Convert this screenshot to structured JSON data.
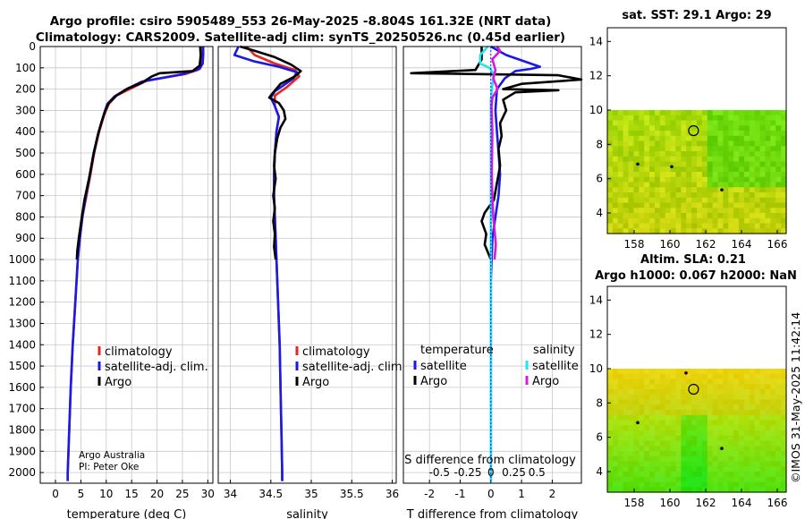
{
  "title": {
    "line1": "Argo profile: csiro 5905489_553 26-May-2025 -8.804S 161.32E (NRT data)",
    "line2": "Climatology: CARS2009. Satellite-adj clim: synTS_20250526.nc (0.45d earlier)"
  },
  "credit": {
    "line1": "Argo Australia",
    "line2": "PI: Peter Oke"
  },
  "timestamp": "©IMOS 31-May-2025 11:42:14",
  "colors": {
    "climatology": "#e8251e",
    "satellite": "#1a1ae6",
    "argo": "#000000",
    "sat_salinity": "#1ee6ee",
    "argo_salinity": "#d81ad8"
  },
  "chart_data": [
    {
      "id": "temperature",
      "type": "line",
      "xlabel": "temperature (deg C)",
      "ylabel": "",
      "xlim": [
        -3,
        31
      ],
      "ylim": [
        2050,
        0
      ],
      "xticks": [
        0,
        5,
        10,
        15,
        20,
        25,
        30
      ],
      "yticks": [
        0,
        100,
        200,
        300,
        400,
        500,
        600,
        700,
        800,
        900,
        1000,
        1100,
        1200,
        1300,
        1400,
        1500,
        1600,
        1700,
        1800,
        1900,
        2000
      ],
      "grid": true,
      "legend": {
        "position": "lower-right",
        "entries": [
          "climatology",
          "satellite-adj. clim.",
          "Argo"
        ]
      },
      "series": [
        {
          "name": "climatology",
          "color": "#e8251e",
          "points": [
            [
              28.9,
              0
            ],
            [
              28.9,
              40
            ],
            [
              28.8,
              80
            ],
            [
              28.0,
              110
            ],
            [
              25.5,
              130
            ],
            [
              18,
              160
            ],
            [
              15,
              195
            ],
            [
              12,
              230
            ],
            [
              10.5,
              270
            ],
            [
              9.6,
              320
            ],
            [
              8.6,
              400
            ],
            [
              7.6,
              500
            ],
            [
              6.9,
              600
            ],
            [
              6.1,
              700
            ],
            [
              5.3,
              800
            ],
            [
              4.8,
              900
            ],
            [
              4.4,
              1000
            ],
            [
              3.9,
              1200
            ],
            [
              3.4,
              1400
            ],
            [
              3.0,
              1600
            ],
            [
              2.7,
              1800
            ],
            [
              2.4,
              2000
            ],
            [
              2.4,
              2040
            ]
          ]
        },
        {
          "name": "satellite-adj. clim.",
          "color": "#1a1ae6",
          "points": [
            [
              29.1,
              0
            ],
            [
              29.1,
              40
            ],
            [
              29.0,
              80
            ],
            [
              28.4,
              105
            ],
            [
              25,
              130
            ],
            [
              17,
              165
            ],
            [
              14,
              200
            ],
            [
              11.6,
              235
            ],
            [
              10.2,
              270
            ],
            [
              9.5,
              320
            ],
            [
              8.5,
              400
            ],
            [
              7.5,
              500
            ],
            [
              6.8,
              600
            ],
            [
              6.0,
              700
            ],
            [
              5.3,
              800
            ],
            [
              4.8,
              900
            ],
            [
              4.4,
              1000
            ],
            [
              3.9,
              1200
            ],
            [
              3.4,
              1400
            ],
            [
              3.0,
              1600
            ],
            [
              2.7,
              1800
            ],
            [
              2.4,
              2000
            ],
            [
              2.4,
              2040
            ]
          ]
        },
        {
          "name": "Argo",
          "color": "#000000",
          "points": [
            [
              28.5,
              0
            ],
            [
              28.6,
              40
            ],
            [
              28.4,
              90
            ],
            [
              27,
              115
            ],
            [
              20.5,
              125
            ],
            [
              19,
              140
            ],
            [
              17,
              170
            ],
            [
              14,
              200
            ],
            [
              12,
              230
            ],
            [
              10.5,
              265
            ],
            [
              9.8,
              300
            ],
            [
              9.0,
              360
            ],
            [
              8.3,
              420
            ],
            [
              7.4,
              520
            ],
            [
              6.6,
              620
            ],
            [
              5.7,
              720
            ],
            [
              5.2,
              800
            ],
            [
              4.6,
              900
            ],
            [
              4.3,
              960
            ],
            [
              4.2,
              1000
            ]
          ]
        }
      ]
    },
    {
      "id": "salinity",
      "type": "line",
      "xlabel": "salinity",
      "xlim": [
        33.85,
        36.05
      ],
      "ylim": [
        2050,
        0
      ],
      "xticks": [
        34,
        34.5,
        35,
        35.5,
        36
      ],
      "grid": true,
      "legend": {
        "position": "lower-right",
        "entries": [
          "climatology",
          "satellite-adj. clim.",
          "Argo"
        ]
      },
      "series": [
        {
          "name": "climatology",
          "color": "#e8251e",
          "points": [
            [
              34.2,
              0
            ],
            [
              34.3,
              40
            ],
            [
              34.55,
              80
            ],
            [
              34.8,
              110
            ],
            [
              34.85,
              140
            ],
            [
              34.7,
              190
            ],
            [
              34.55,
              230
            ],
            [
              34.55,
              280
            ],
            [
              34.6,
              330
            ],
            [
              34.57,
              400
            ],
            [
              34.55,
              500
            ],
            [
              34.54,
              600
            ],
            [
              34.54,
              700
            ],
            [
              34.55,
              800
            ],
            [
              34.56,
              900
            ],
            [
              34.57,
              1000
            ],
            [
              34.59,
              1200
            ],
            [
              34.61,
              1400
            ],
            [
              34.62,
              1600
            ],
            [
              34.63,
              1800
            ],
            [
              34.64,
              2000
            ],
            [
              34.64,
              2040
            ]
          ]
        },
        {
          "name": "satellite-adj. clim.",
          "color": "#1a1ae6",
          "points": [
            [
              34.1,
              0
            ],
            [
              34.05,
              40
            ],
            [
              34.3,
              70
            ],
            [
              34.6,
              95
            ],
            [
              34.82,
              120
            ],
            [
              34.78,
              150
            ],
            [
              34.55,
              210
            ],
            [
              34.5,
              240
            ],
            [
              34.55,
              280
            ],
            [
              34.6,
              330
            ],
            [
              34.57,
              400
            ],
            [
              34.55,
              500
            ],
            [
              34.54,
              600
            ],
            [
              34.54,
              700
            ],
            [
              34.55,
              800
            ],
            [
              34.56,
              900
            ],
            [
              34.57,
              1000
            ],
            [
              34.59,
              1200
            ],
            [
              34.61,
              1400
            ],
            [
              34.62,
              1600
            ],
            [
              34.63,
              1800
            ],
            [
              34.64,
              2000
            ],
            [
              34.64,
              2040
            ]
          ]
        },
        {
          "name": "Argo",
          "color": "#000000",
          "points": [
            [
              34.12,
              0
            ],
            [
              34.3,
              20
            ],
            [
              34.55,
              50
            ],
            [
              34.75,
              85
            ],
            [
              34.87,
              115
            ],
            [
              34.8,
              140
            ],
            [
              34.62,
              175
            ],
            [
              34.52,
              220
            ],
            [
              34.48,
              240
            ],
            [
              34.6,
              265
            ],
            [
              34.66,
              300
            ],
            [
              34.68,
              340
            ],
            [
              34.62,
              380
            ],
            [
              34.58,
              430
            ],
            [
              34.55,
              500
            ],
            [
              34.54,
              560
            ],
            [
              34.56,
              620
            ],
            [
              34.53,
              700
            ],
            [
              34.55,
              760
            ],
            [
              34.53,
              820
            ],
            [
              34.55,
              880
            ],
            [
              34.54,
              940
            ],
            [
              34.56,
              1000
            ]
          ]
        }
      ]
    },
    {
      "id": "difference",
      "type": "line",
      "xlabel": "T difference from climatology",
      "xlabel_top": "S difference from climatology",
      "xlim": [
        -2.85,
        2.95
      ],
      "ylim": [
        2050,
        0
      ],
      "xticks": [
        -2,
        -1,
        0,
        1,
        2
      ],
      "xticks_s": [
        "-0.5",
        "-0.25",
        "0",
        "0.25",
        "0.5"
      ],
      "grid": true,
      "legend": {
        "position": "lower-right",
        "temperature_title": "temperature",
        "salinity_title": "salinity",
        "entries_t": [
          "satellite",
          "Argo"
        ],
        "entries_s": [
          "satellite",
          "Argo"
        ]
      },
      "series": [
        {
          "name": "T satellite",
          "color": "#1a1ae6",
          "points": [
            [
              0,
              0
            ],
            [
              0.5,
              40
            ],
            [
              1.6,
              95
            ],
            [
              1.3,
              105
            ],
            [
              0.8,
              115
            ],
            [
              0.45,
              150
            ],
            [
              0.2,
              200
            ],
            [
              0.15,
              300
            ],
            [
              0.2,
              400
            ],
            [
              0.25,
              500
            ],
            [
              0.3,
              600
            ],
            [
              0.25,
              700
            ],
            [
              0.15,
              800
            ],
            [
              0.05,
              900
            ],
            [
              0,
              1100
            ],
            [
              0,
              2040
            ]
          ]
        },
        {
          "name": "T Argo",
          "color": "#000000",
          "points": [
            [
              -0.3,
              0
            ],
            [
              -0.3,
              60
            ],
            [
              -0.5,
              110
            ],
            [
              -2.6,
              125
            ],
            [
              2.2,
              135
            ],
            [
              2.95,
              155
            ],
            [
              1.0,
              175
            ],
            [
              0.4,
              200
            ],
            [
              2.2,
              205
            ],
            [
              0.8,
              215
            ],
            [
              0.4,
              250
            ],
            [
              0.5,
              300
            ],
            [
              0.3,
              360
            ],
            [
              0.35,
              420
            ],
            [
              0.25,
              480
            ],
            [
              0.3,
              560
            ],
            [
              0.2,
              640
            ],
            [
              0.1,
              720
            ],
            [
              -0.2,
              780
            ],
            [
              -0.3,
              820
            ],
            [
              -0.15,
              880
            ],
            [
              -0.2,
              930
            ],
            [
              0,
              1000
            ]
          ]
        },
        {
          "name": "S satellite",
          "color": "#1ee6ee",
          "points": [
            [
              -0.1,
              0
            ],
            [
              -0.35,
              40
            ],
            [
              -0.35,
              80
            ],
            [
              -0.05,
              100
            ],
            [
              0.1,
              130
            ],
            [
              0.05,
              180
            ],
            [
              0,
              250
            ],
            [
              0,
              2040
            ]
          ]
        },
        {
          "name": "S Argo",
          "color": "#d81ad8",
          "points": [
            [
              0.2,
              0
            ],
            [
              0.3,
              20
            ],
            [
              0.05,
              60
            ],
            [
              0.15,
              110
            ],
            [
              0.08,
              150
            ],
            [
              0.22,
              200
            ],
            [
              0.05,
              240
            ],
            [
              0.02,
              280
            ],
            [
              0.05,
              400
            ],
            [
              0.03,
              600
            ],
            [
              0.05,
              700
            ],
            [
              0.08,
              800
            ],
            [
              0.12,
              860
            ],
            [
              0.16,
              930
            ],
            [
              0.12,
              1000
            ]
          ]
        }
      ]
    },
    {
      "id": "sst_map",
      "type": "heatmap",
      "title": "sat. SST: 29.1 Argo: 29",
      "xlim": [
        156.5,
        166.5
      ],
      "ylim": [
        2.8,
        14.8
      ],
      "xticks": [
        158,
        160,
        162,
        164,
        166
      ],
      "yticks": [
        4,
        6,
        8,
        10,
        12,
        14
      ],
      "data_extent_y": [
        2.8,
        10
      ],
      "float_position": [
        161.32,
        8.8
      ],
      "islands": [
        [
          158.2,
          6.85
        ],
        [
          160.1,
          6.7
        ],
        [
          162.9,
          5.35
        ]
      ]
    },
    {
      "id": "sla_map",
      "type": "heatmap",
      "title_line1": "Altim. SLA: 0.21",
      "title_line2": "Argo h1000: 0.067 h2000: NaN",
      "xlim": [
        156.5,
        166.5
      ],
      "ylim": [
        2.8,
        14.8
      ],
      "xticks": [
        158,
        160,
        162,
        164,
        166
      ],
      "yticks": [
        4,
        6,
        8,
        10,
        12,
        14
      ],
      "data_extent_y": [
        2.8,
        10
      ],
      "float_position": [
        161.32,
        8.8
      ],
      "islands": [
        [
          158.2,
          6.85
        ],
        [
          160.9,
          9.75
        ],
        [
          162.9,
          5.35
        ]
      ]
    }
  ]
}
